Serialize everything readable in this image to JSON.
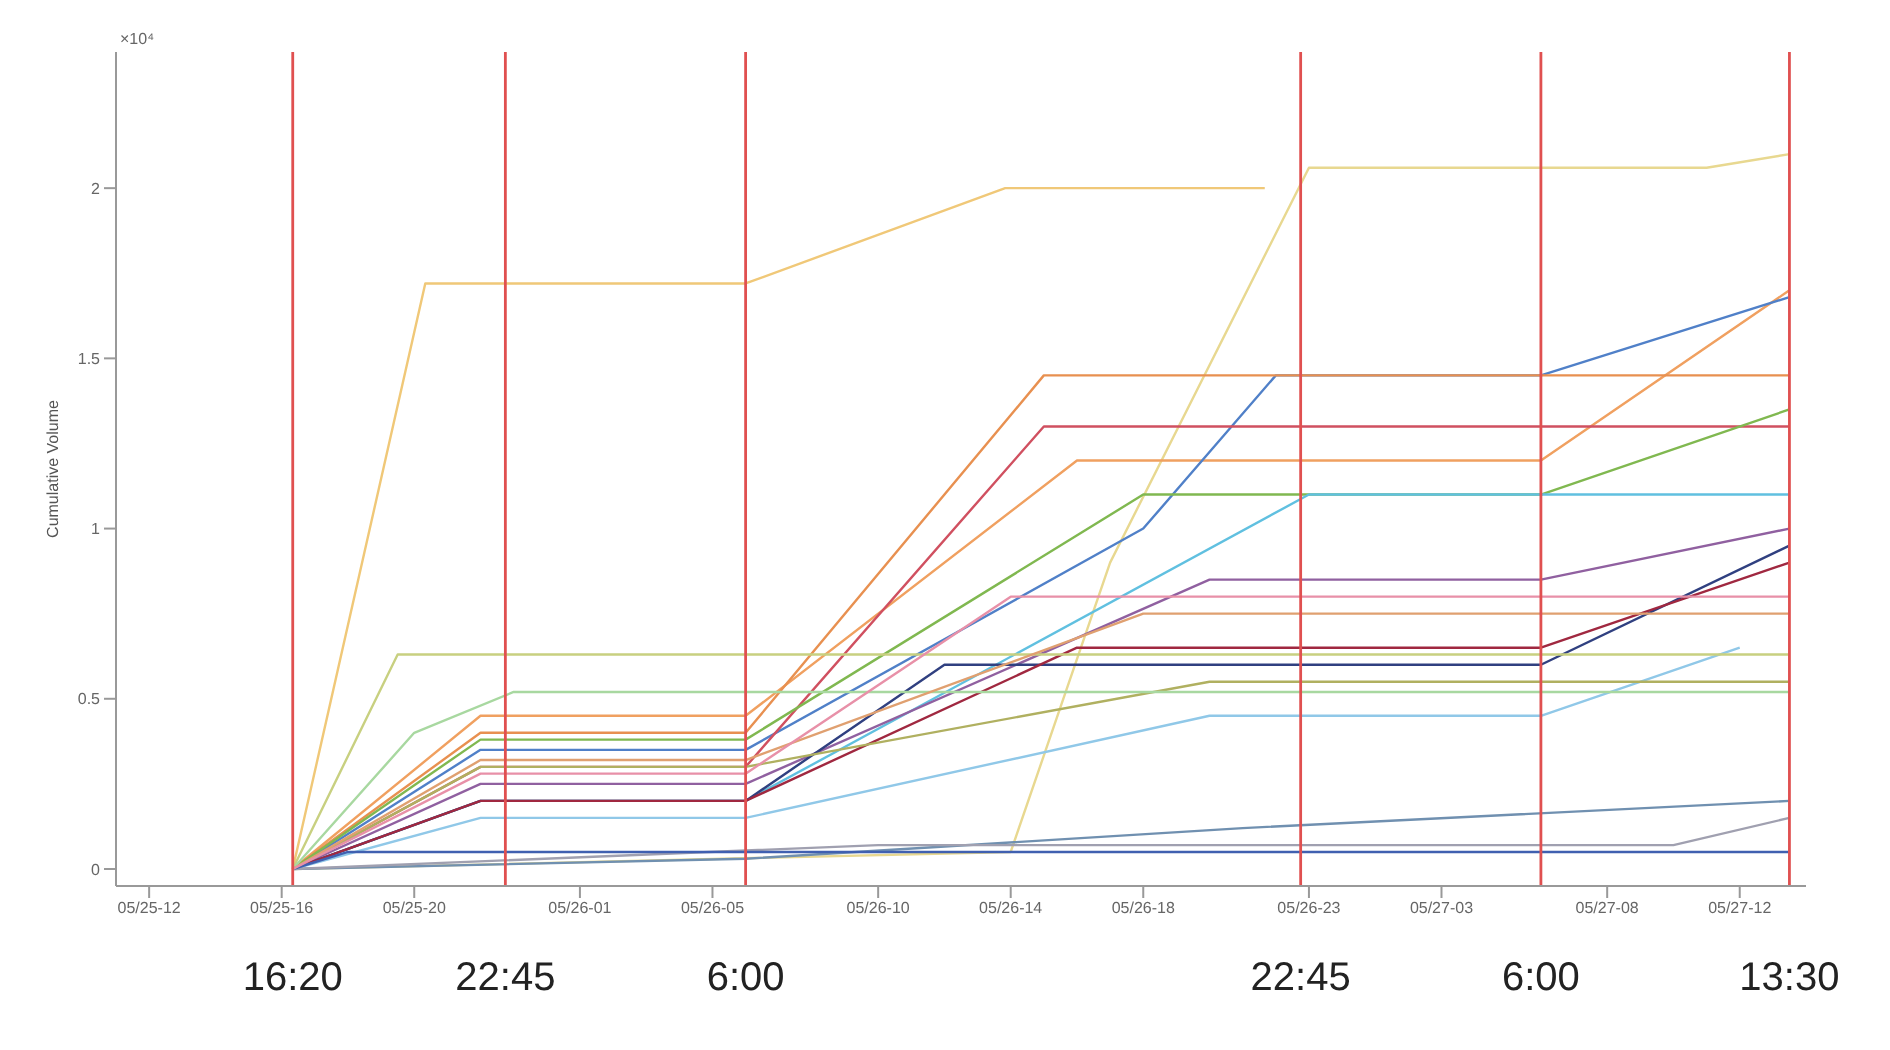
{
  "chart_data": {
    "type": "line",
    "ylabel": "Cumulative Volume",
    "annotations": [
      "×10⁴"
    ],
    "marker": "none",
    "line_style": "solid",
    "grid": false,
    "legend": false,
    "xlim": [
      "--05-25T11:00",
      "--05-27T14:00"
    ],
    "ylim": [
      -0.05,
      2.4
    ],
    "xticks": [
      {
        "value": "--05-25T12:00",
        "label": "05/25-12"
      },
      {
        "value": "--05-25T16:00",
        "label": "05/25-16"
      },
      {
        "value": "--05-25T20:00",
        "label": "05/25-20"
      },
      {
        "value": "--05-26T01:00",
        "label": "05/26-01"
      },
      {
        "value": "--05-26T05:00",
        "label": "05/26-05"
      },
      {
        "value": "--05-26T10:00",
        "label": "05/26-10"
      },
      {
        "value": "--05-26T14:00",
        "label": "05/26-14"
      },
      {
        "value": "--05-26T18:00",
        "label": "05/26-18"
      },
      {
        "value": "--05-26T23:00",
        "label": "05/26-23"
      },
      {
        "value": "--05-27T03:00",
        "label": "05/27-03"
      },
      {
        "value": "--05-27T08:00",
        "label": "05/27-08"
      },
      {
        "value": "--05-27T12:00",
        "label": "05/27-12"
      }
    ],
    "yticks": [
      0,
      0.5,
      1,
      1.5,
      2
    ],
    "ref_lines": [
      {
        "axis": "x",
        "value": "--05-25T16:20",
        "label": "16:20",
        "color": "#e05050"
      },
      {
        "axis": "x",
        "value": "--05-25T22:45",
        "label": "22:45",
        "color": "#e05050"
      },
      {
        "axis": "x",
        "value": "--05-26T06:00",
        "label": "6:00",
        "color": "#e05050"
      },
      {
        "axis": "x",
        "value": "--05-26T22:45",
        "label": "22:45",
        "color": "#e05050"
      },
      {
        "axis": "x",
        "value": "--05-27T06:00",
        "label": "6:00",
        "color": "#e05050"
      },
      {
        "axis": "x",
        "value": "--05-27T13:30",
        "label": "13:30",
        "color": "#e05050"
      }
    ],
    "series": [
      {
        "color": "#f0c878",
        "x": [
          "--05-25T16:20",
          "--05-25T20:20",
          "--05-26T06:00",
          "--05-26T13:50",
          "--05-26T21:40"
        ],
        "values": [
          0,
          1.72,
          1.72,
          2.0,
          2.0
        ]
      },
      {
        "color": "#e8d890",
        "x": [
          "--05-25T16:20",
          "--05-26T14:00",
          "--05-26T17:00",
          "--05-26T23:00",
          "--05-27T11:00",
          "--05-27T13:30"
        ],
        "values": [
          0,
          0.05,
          0.9,
          2.06,
          2.06,
          2.1
        ]
      },
      {
        "color": "#f0a060",
        "x": [
          "--05-25T16:20",
          "--05-25T22:00",
          "--05-26T06:00",
          "--05-26T16:00",
          "--05-27T06:00",
          "--05-27T13:30"
        ],
        "values": [
          0,
          0.45,
          0.45,
          1.2,
          1.2,
          1.7
        ]
      },
      {
        "color": "#5080c8",
        "x": [
          "--05-25T16:20",
          "--05-25T22:00",
          "--05-26T06:00",
          "--05-26T18:00",
          "--05-26T22:00",
          "--05-27T06:00",
          "--05-27T13:30"
        ],
        "values": [
          0,
          0.35,
          0.35,
          1.0,
          1.45,
          1.45,
          1.68
        ]
      },
      {
        "color": "#e89050",
        "x": [
          "--05-25T16:20",
          "--05-25T22:00",
          "--05-26T06:00",
          "--05-26T15:00",
          "--05-27T13:30"
        ],
        "values": [
          0,
          0.4,
          0.4,
          1.45,
          1.45
        ]
      },
      {
        "color": "#d05060",
        "x": [
          "--05-25T16:20",
          "--05-25T22:00",
          "--05-26T06:00",
          "--05-26T15:00",
          "--05-27T13:30"
        ],
        "values": [
          0,
          0.3,
          0.3,
          1.3,
          1.3
        ]
      },
      {
        "color": "#80b850",
        "x": [
          "--05-25T16:20",
          "--05-25T22:00",
          "--05-26T06:00",
          "--05-26T18:00",
          "--05-27T06:00",
          "--05-27T13:30"
        ],
        "values": [
          0,
          0.38,
          0.38,
          1.1,
          1.1,
          1.35
        ]
      },
      {
        "color": "#60c0e0",
        "x": [
          "--05-25T16:20",
          "--05-25T22:00",
          "--05-26T06:00",
          "--05-26T23:00",
          "--05-27T13:30"
        ],
        "values": [
          0,
          0.2,
          0.2,
          1.1,
          1.1
        ]
      },
      {
        "color": "#9060a0",
        "x": [
          "--05-25T16:20",
          "--05-25T22:00",
          "--05-26T06:00",
          "--05-26T20:00",
          "--05-27T06:00",
          "--05-27T13:30"
        ],
        "values": [
          0,
          0.25,
          0.25,
          0.85,
          0.85,
          1.0
        ]
      },
      {
        "color": "#304080",
        "x": [
          "--05-25T16:20",
          "--05-25T22:00",
          "--05-26T06:00",
          "--05-26T12:00",
          "--05-27T06:00",
          "--05-27T13:30"
        ],
        "values": [
          0,
          0.2,
          0.2,
          0.6,
          0.6,
          0.95
        ]
      },
      {
        "color": "#a02840",
        "x": [
          "--05-25T16:20",
          "--05-25T22:00",
          "--05-26T06:00",
          "--05-26T16:00",
          "--05-27T06:00",
          "--05-27T13:30"
        ],
        "values": [
          0,
          0.2,
          0.2,
          0.65,
          0.65,
          0.9
        ]
      },
      {
        "color": "#90c8e8",
        "x": [
          "--05-25T16:20",
          "--05-25T22:00",
          "--05-26T06:00",
          "--05-26T20:00",
          "--05-27T06:00",
          "--05-27T12:00"
        ],
        "values": [
          0,
          0.15,
          0.15,
          0.45,
          0.45,
          0.65
        ]
      },
      {
        "color": "#b0b060",
        "x": [
          "--05-25T16:20",
          "--05-25T22:00",
          "--05-26T06:00",
          "--05-26T20:00",
          "--05-27T13:30"
        ],
        "values": [
          0,
          0.3,
          0.3,
          0.55,
          0.55
        ]
      },
      {
        "color": "#7090b0",
        "x": [
          "--05-25T16:20",
          "--05-26T06:00",
          "--05-26T21:00",
          "--05-27T13:30"
        ],
        "values": [
          0,
          0.03,
          0.12,
          0.2
        ]
      },
      {
        "color": "#a0a0b0",
        "x": [
          "--05-25T16:20",
          "--05-26T10:00",
          "--05-27T10:00",
          "--05-27T13:30"
        ],
        "values": [
          0,
          0.07,
          0.07,
          0.15
        ]
      },
      {
        "color": "#c8d080",
        "x": [
          "--05-25T16:20",
          "--05-25T19:30",
          "--05-27T13:30"
        ],
        "values": [
          0,
          0.63,
          0.63
        ]
      },
      {
        "color": "#a8d8a0",
        "x": [
          "--05-25T16:20",
          "--05-25T20:00",
          "--05-25T23:00",
          "--05-27T13:30"
        ],
        "values": [
          0,
          0.4,
          0.52,
          0.52
        ]
      },
      {
        "color": "#4060b0",
        "x": [
          "--05-25T16:20",
          "--05-25T18:00",
          "--05-27T13:30"
        ],
        "values": [
          0,
          0.05,
          0.05
        ]
      },
      {
        "color": "#e0a070",
        "x": [
          "--05-25T16:20",
          "--05-25T22:00",
          "--05-26T06:00",
          "--05-26T18:00",
          "--05-27T13:30"
        ],
        "values": [
          0,
          0.32,
          0.32,
          0.75,
          0.75
        ]
      },
      {
        "color": "#e890a8",
        "x": [
          "--05-25T16:20",
          "--05-25T22:00",
          "--05-26T06:00",
          "--05-26T14:00",
          "--05-27T13:30"
        ],
        "values": [
          0,
          0.28,
          0.28,
          0.8,
          0.8
        ]
      }
    ]
  }
}
